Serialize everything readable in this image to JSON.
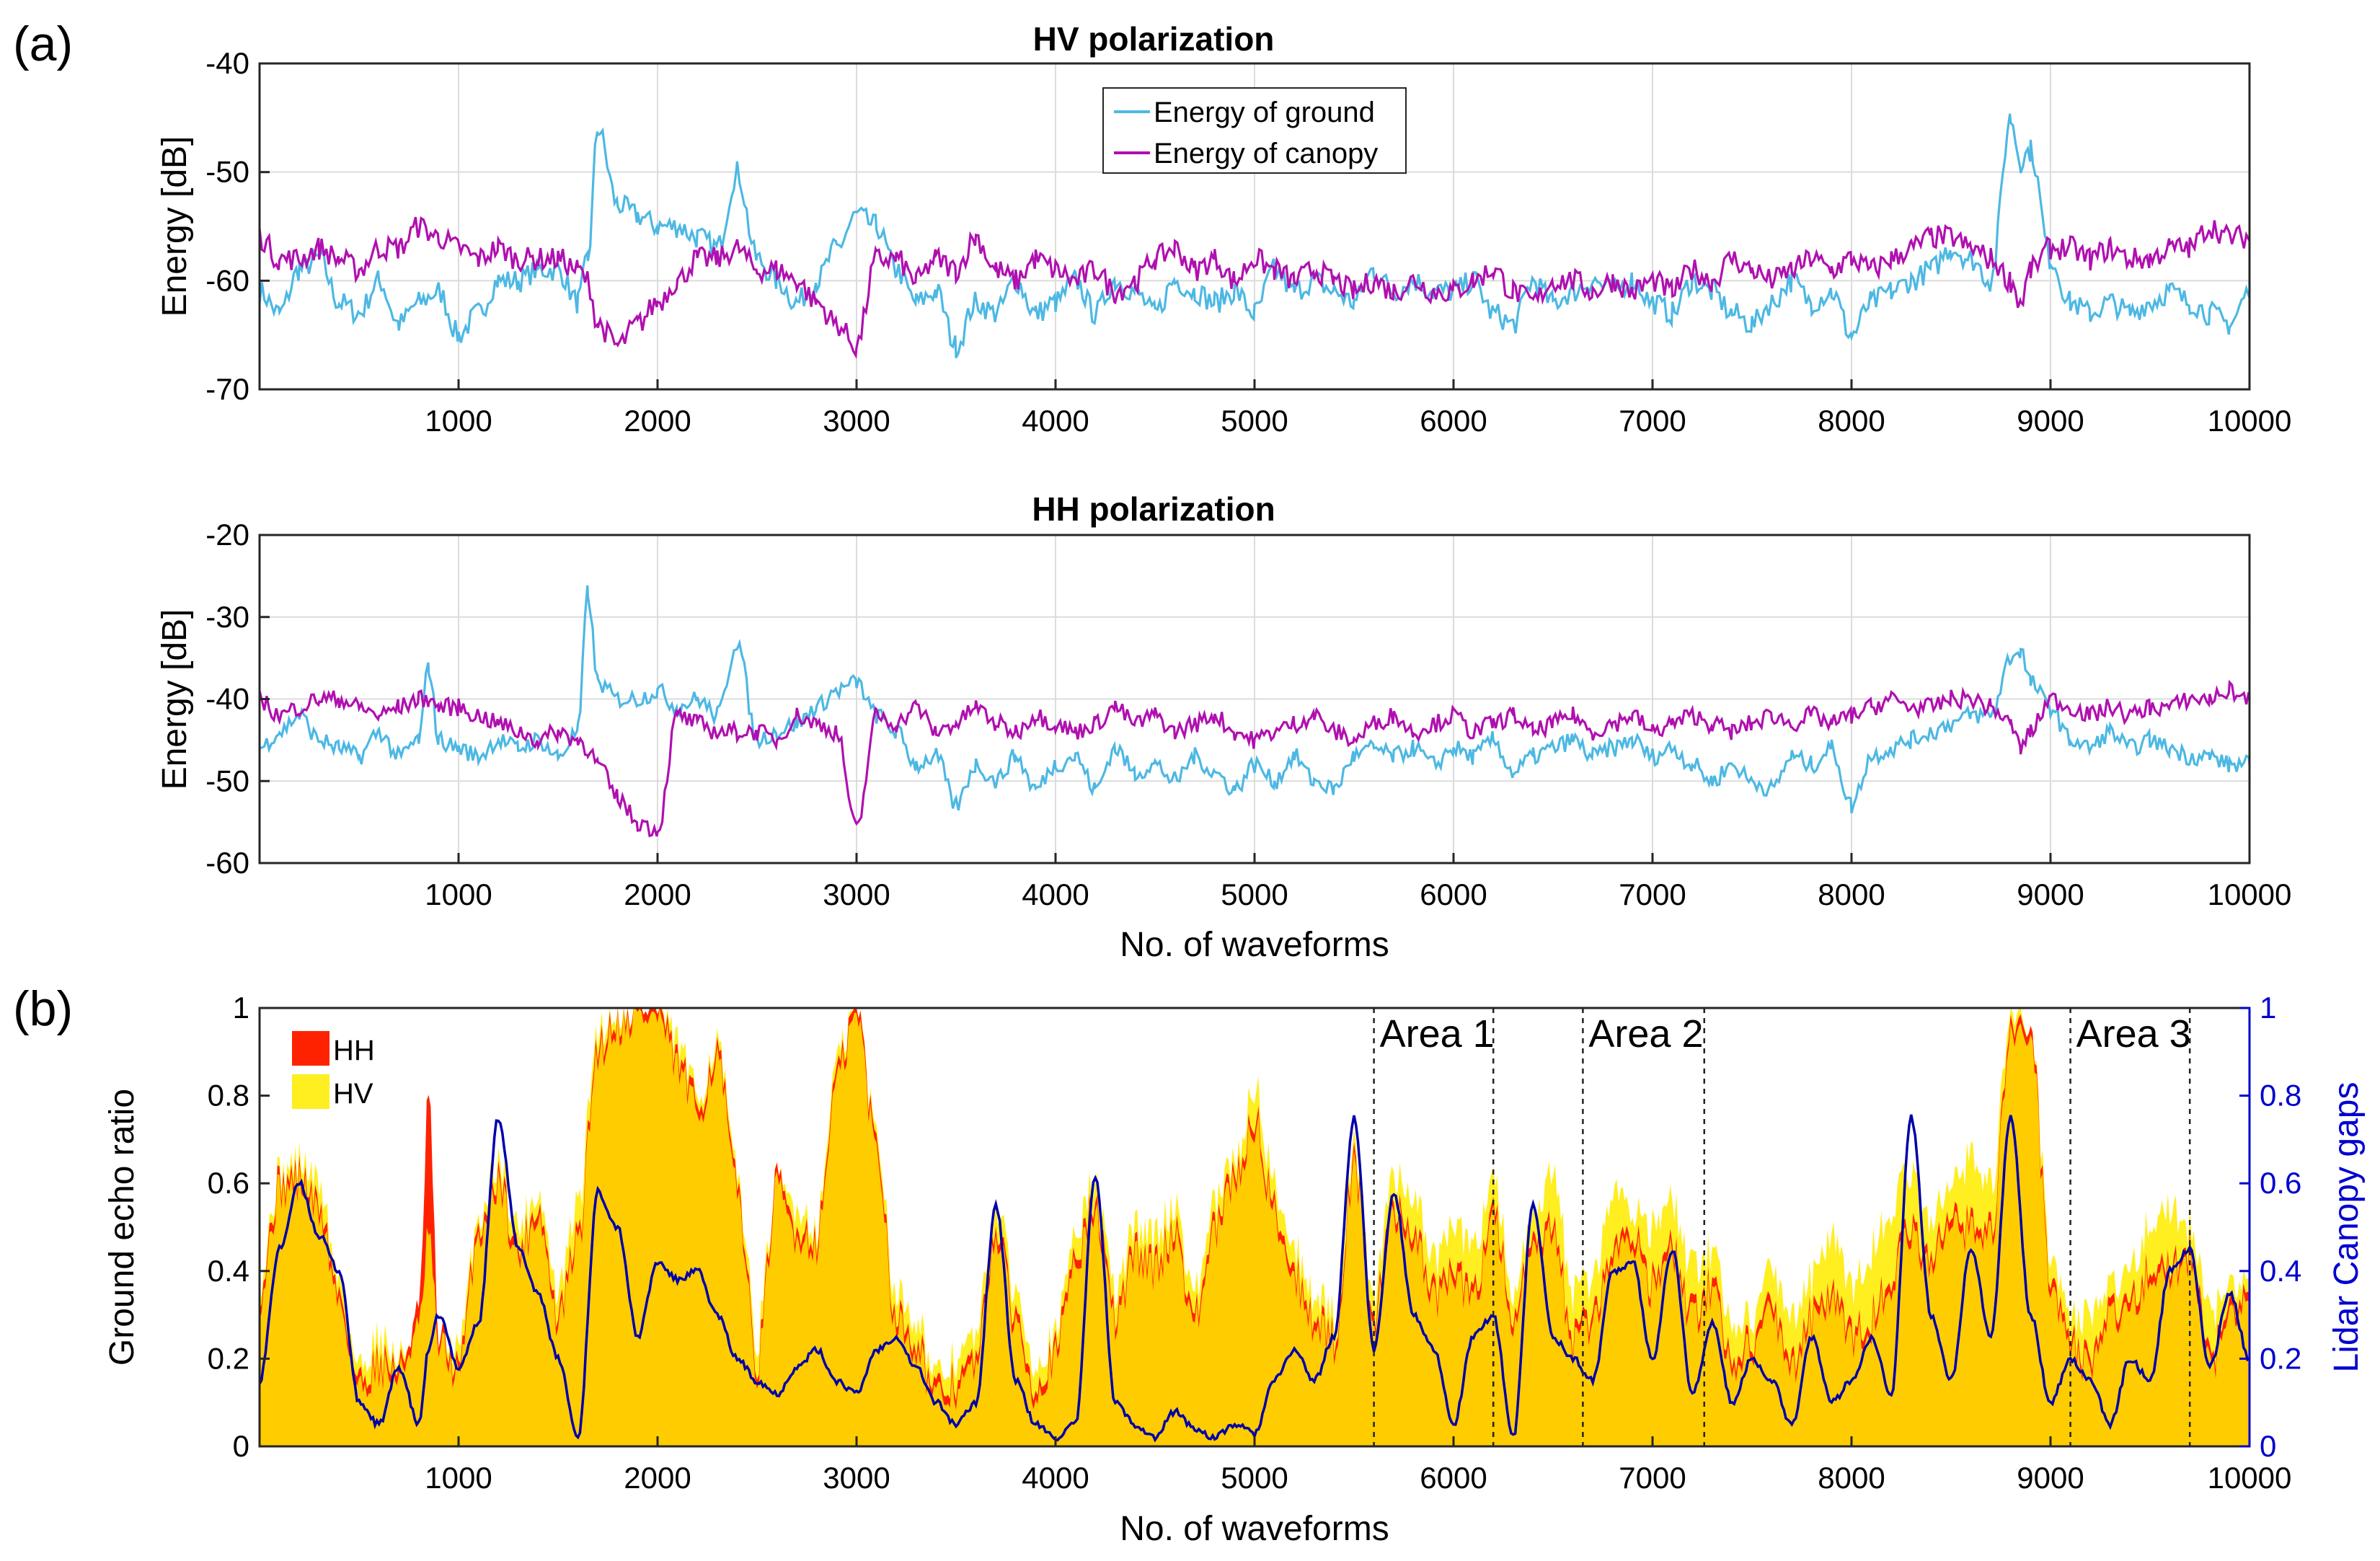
{
  "panel_labels": {
    "a": "(a)",
    "b": "(b)"
  },
  "colors": {
    "ground": "#4db8e3",
    "canopy": "#b010b0",
    "hh_fill": "#ff2200",
    "hv_fill": "#ffee20",
    "overlap_fill": "#ffcc00",
    "lidar": "#0000a8",
    "right_axis": "#0000d0"
  },
  "chart_data": [
    {
      "type": "line",
      "title": "HV polarization",
      "xlabel": "",
      "ylabel": "Energy [dB]",
      "xlim": [
        0,
        10000
      ],
      "ylim": [
        -70,
        -40
      ],
      "xticks": [
        1000,
        2000,
        3000,
        4000,
        5000,
        6000,
        7000,
        8000,
        9000,
        10000
      ],
      "yticks": [
        -70,
        -60,
        -50,
        -40
      ],
      "grid": true,
      "legend": "top-center",
      "x": [
        0,
        100,
        200,
        300,
        400,
        500,
        600,
        700,
        800,
        900,
        1000,
        1100,
        1200,
        1300,
        1400,
        1500,
        1600,
        1650,
        1700,
        1800,
        1900,
        2000,
        2100,
        2200,
        2300,
        2400,
        2500,
        2600,
        2700,
        2800,
        2900,
        3000,
        3100,
        3200,
        3300,
        3400,
        3500,
        3600,
        3700,
        3800,
        3900,
        4000,
        4100,
        4200,
        4300,
        4400,
        4500,
        4600,
        4700,
        4800,
        4900,
        5000,
        5100,
        5200,
        5300,
        5400,
        5500,
        5600,
        5700,
        5800,
        5900,
        6000,
        6100,
        6200,
        6300,
        6400,
        6500,
        6600,
        6700,
        6800,
        6900,
        7000,
        7100,
        7200,
        7300,
        7400,
        7500,
        7600,
        7700,
        7800,
        7900,
        8000,
        8100,
        8200,
        8300,
        8400,
        8500,
        8600,
        8700,
        8800,
        8850,
        8900,
        9000,
        9100,
        9200,
        9300,
        9400,
        9500,
        9600,
        9700,
        9800,
        9900,
        10000
      ],
      "series": [
        {
          "name": "Energy of ground",
          "values": [
            -61,
            -63,
            -59,
            -58,
            -62,
            -63,
            -60,
            -64,
            -62,
            -61,
            -65,
            -63,
            -60,
            -60,
            -59,
            -59,
            -62,
            -58,
            -46,
            -53,
            -54,
            -55,
            -55,
            -56,
            -57,
            -50,
            -58,
            -60,
            -62,
            -60,
            -57,
            -54,
            -55,
            -59,
            -62,
            -61,
            -66,
            -62,
            -63,
            -60,
            -63,
            -62,
            -60,
            -63,
            -60,
            -61,
            -63,
            -60,
            -61,
            -62,
            -61,
            -63,
            -59,
            -61,
            -60,
            -61,
            -62,
            -59,
            -61,
            -60,
            -61,
            -61,
            -60,
            -63,
            -64,
            -60,
            -62,
            -61,
            -60,
            -61,
            -60,
            -62,
            -63,
            -60,
            -61,
            -63,
            -64,
            -62,
            -60,
            -62,
            -61,
            -65,
            -62,
            -61,
            -60,
            -59,
            -57,
            -58,
            -60,
            -45,
            -49,
            -48,
            -58,
            -62,
            -63,
            -62,
            -63,
            -62,
            -61,
            -62,
            -63,
            -64,
            -61
          ]
        },
        {
          "name": "Energy of canopy",
          "values": [
            -56,
            -58,
            -58,
            -57,
            -58,
            -59,
            -57,
            -57,
            -55,
            -56,
            -57,
            -58,
            -57,
            -58,
            -58,
            -58,
            -59,
            -60,
            -64,
            -66,
            -64,
            -62,
            -60,
            -58,
            -58,
            -57,
            -59,
            -59,
            -60,
            -62,
            -64,
            -66,
            -58,
            -58,
            -60,
            -58,
            -59,
            -56,
            -59,
            -60,
            -58,
            -59,
            -60,
            -59,
            -61,
            -60,
            -58,
            -57,
            -59,
            -58,
            -60,
            -58,
            -59,
            -60,
            -59,
            -60,
            -61,
            -60,
            -61,
            -60,
            -61,
            -61,
            -60,
            -59,
            -61,
            -62,
            -60,
            -60,
            -61,
            -60,
            -61,
            -60,
            -61,
            -59,
            -60,
            -58,
            -59,
            -60,
            -59,
            -58,
            -59,
            -58,
            -59,
            -58,
            -57,
            -56,
            -56,
            -57,
            -58,
            -60,
            -62,
            -59,
            -57,
            -57,
            -58,
            -57,
            -58,
            -58,
            -57,
            -57,
            -55,
            -56,
            -56
          ]
        }
      ]
    },
    {
      "type": "line",
      "title": "HH polarization",
      "xlabel": "No. of waveforms",
      "ylabel": "Energy [dB]",
      "xlim": [
        0,
        10000
      ],
      "ylim": [
        -60,
        -20
      ],
      "xticks": [
        1000,
        2000,
        3000,
        4000,
        5000,
        6000,
        7000,
        8000,
        9000,
        10000
      ],
      "yticks": [
        -60,
        -50,
        -40,
        -30,
        -20
      ],
      "grid": true,
      "x": [
        0,
        100,
        200,
        300,
        400,
        500,
        600,
        700,
        800,
        850,
        900,
        1000,
        1100,
        1200,
        1300,
        1400,
        1500,
        1600,
        1650,
        1700,
        1800,
        1900,
        2000,
        2100,
        2200,
        2300,
        2400,
        2500,
        2600,
        2700,
        2800,
        2900,
        3000,
        3100,
        3200,
        3300,
        3400,
        3500,
        3600,
        3700,
        3800,
        3900,
        4000,
        4100,
        4200,
        4300,
        4400,
        4500,
        4600,
        4700,
        4800,
        4900,
        5000,
        5100,
        5200,
        5300,
        5400,
        5500,
        5600,
        5700,
        5800,
        5900,
        6000,
        6100,
        6200,
        6300,
        6400,
        6500,
        6600,
        6700,
        6800,
        6900,
        7000,
        7100,
        7200,
        7300,
        7400,
        7500,
        7600,
        7700,
        7800,
        7900,
        8000,
        8100,
        8200,
        8300,
        8400,
        8500,
        8600,
        8700,
        8800,
        8850,
        8900,
        9000,
        9100,
        9200,
        9300,
        9400,
        9500,
        9600,
        9700,
        9800,
        9900,
        10000
      ],
      "series": [
        {
          "name": "Energy of ground",
          "values": [
            -46,
            -44,
            -42,
            -45,
            -46,
            -47,
            -44,
            -47,
            -45,
            -36,
            -45,
            -46,
            -47,
            -45,
            -46,
            -45,
            -47,
            -44,
            -27,
            -38,
            -40,
            -40,
            -39,
            -41,
            -40,
            -42,
            -33,
            -45,
            -44,
            -43,
            -41,
            -39,
            -38,
            -42,
            -44,
            -48,
            -47,
            -53,
            -48,
            -50,
            -47,
            -51,
            -48,
            -47,
            -51,
            -46,
            -49,
            -48,
            -50,
            -47,
            -49,
            -51,
            -48,
            -50,
            -47,
            -50,
            -51,
            -47,
            -46,
            -47,
            -46,
            -48,
            -46,
            -47,
            -45,
            -49,
            -47,
            -46,
            -45,
            -47,
            -46,
            -45,
            -47,
            -46,
            -48,
            -50,
            -48,
            -50,
            -51,
            -47,
            -48,
            -46,
            -53,
            -47,
            -46,
            -45,
            -44,
            -43,
            -42,
            -42,
            -35,
            -34,
            -38,
            -41,
            -45,
            -46,
            -44,
            -46,
            -45,
            -46,
            -47,
            -47,
            -48,
            -48
          ]
        },
        {
          "name": "Energy of canopy",
          "values": [
            -40,
            -42,
            -41,
            -40,
            -40,
            -41,
            -42,
            -41,
            -40,
            -40,
            -41,
            -41,
            -42,
            -43,
            -44,
            -45,
            -44,
            -45,
            -46,
            -48,
            -52,
            -55,
            -56,
            -42,
            -43,
            -44,
            -44,
            -44,
            -45,
            -42,
            -43,
            -44,
            -56,
            -42,
            -43,
            -41,
            -44,
            -43,
            -41,
            -43,
            -44,
            -42,
            -43,
            -44,
            -43,
            -41,
            -43,
            -42,
            -44,
            -43,
            -42,
            -44,
            -45,
            -44,
            -43,
            -42,
            -44,
            -45,
            -43,
            -42,
            -44,
            -43,
            -42,
            -44,
            -43,
            -42,
            -44,
            -43,
            -42,
            -44,
            -43,
            -42,
            -44,
            -43,
            -42,
            -43,
            -44,
            -43,
            -42,
            -43,
            -42,
            -43,
            -42,
            -41,
            -40,
            -41,
            -41,
            -40,
            -40,
            -41,
            -43,
            -46,
            -44,
            -40,
            -41,
            -42,
            -41,
            -42,
            -41,
            -41,
            -40,
            -40,
            -39,
            -40
          ]
        }
      ]
    },
    {
      "type": "area",
      "title": "",
      "xlabel": "No. of waveforms",
      "ylabel": "Ground echo ratio",
      "ylabel_right": "Lidar Canopy gaps",
      "xlim": [
        0,
        10000
      ],
      "ylim": [
        0,
        1
      ],
      "ylim_right": [
        0,
        1
      ],
      "xticks": [
        1000,
        2000,
        3000,
        4000,
        5000,
        6000,
        7000,
        8000,
        9000,
        10000
      ],
      "yticks": [
        0,
        0.2,
        0.4,
        0.6,
        0.8,
        1
      ],
      "grid": false,
      "legend": "top-left",
      "legend_items": [
        "HH",
        "HV"
      ],
      "x": [
        0,
        100,
        200,
        300,
        400,
        500,
        600,
        700,
        800,
        850,
        900,
        1000,
        1100,
        1200,
        1300,
        1400,
        1500,
        1600,
        1700,
        1800,
        1900,
        2000,
        2100,
        2200,
        2300,
        2400,
        2500,
        2600,
        2700,
        2800,
        2900,
        3000,
        3100,
        3200,
        3300,
        3400,
        3500,
        3600,
        3700,
        3800,
        3900,
        4000,
        4100,
        4200,
        4300,
        4400,
        4500,
        4600,
        4700,
        4800,
        4900,
        5000,
        5100,
        5200,
        5300,
        5400,
        5500,
        5600,
        5700,
        5800,
        5900,
        6000,
        6100,
        6200,
        6300,
        6400,
        6500,
        6600,
        6700,
        6800,
        6900,
        7000,
        7100,
        7200,
        7300,
        7400,
        7500,
        7600,
        7700,
        7800,
        7900,
        8000,
        8100,
        8200,
        8300,
        8400,
        8500,
        8600,
        8700,
        8800,
        8900,
        9000,
        9100,
        9200,
        9300,
        9400,
        9500,
        9600,
        9700,
        9800,
        9900,
        10000
      ],
      "series": [
        {
          "name": "HH",
          "type": "area",
          "values": [
            0.36,
            0.6,
            0.62,
            0.55,
            0.35,
            0.15,
            0.2,
            0.18,
            0.3,
            0.8,
            0.25,
            0.18,
            0.5,
            0.62,
            0.45,
            0.55,
            0.3,
            0.48,
            0.92,
            0.98,
            1.0,
            1.0,
            0.88,
            0.78,
            0.9,
            0.6,
            0.2,
            0.6,
            0.5,
            0.48,
            0.85,
            1.0,
            0.7,
            0.3,
            0.25,
            0.12,
            0.15,
            0.2,
            0.5,
            0.3,
            0.15,
            0.22,
            0.45,
            0.55,
            0.3,
            0.45,
            0.42,
            0.5,
            0.3,
            0.5,
            0.62,
            0.75,
            0.55,
            0.4,
            0.3,
            0.25,
            0.65,
            0.3,
            0.55,
            0.5,
            0.35,
            0.4,
            0.35,
            0.55,
            0.3,
            0.45,
            0.5,
            0.25,
            0.3,
            0.45,
            0.5,
            0.38,
            0.45,
            0.3,
            0.38,
            0.2,
            0.25,
            0.32,
            0.2,
            0.3,
            0.35,
            0.25,
            0.3,
            0.4,
            0.5,
            0.42,
            0.55,
            0.5,
            0.5,
            0.95,
            0.95,
            0.4,
            0.25,
            0.2,
            0.3,
            0.35,
            0.4,
            0.42,
            0.45,
            0.2,
            0.3,
            0.35
          ]
        },
        {
          "name": "HV",
          "type": "area",
          "values": [
            0.38,
            0.62,
            0.65,
            0.6,
            0.38,
            0.18,
            0.25,
            0.2,
            0.28,
            0.5,
            0.25,
            0.22,
            0.52,
            0.65,
            0.5,
            0.58,
            0.35,
            0.55,
            0.95,
            1.0,
            1.0,
            1.0,
            0.92,
            0.8,
            0.92,
            0.62,
            0.25,
            0.6,
            0.55,
            0.5,
            0.88,
            1.0,
            0.72,
            0.35,
            0.3,
            0.15,
            0.2,
            0.25,
            0.55,
            0.35,
            0.2,
            0.25,
            0.5,
            0.6,
            0.35,
            0.5,
            0.48,
            0.55,
            0.35,
            0.55,
            0.65,
            0.82,
            0.6,
            0.45,
            0.35,
            0.3,
            0.68,
            0.35,
            0.62,
            0.58,
            0.42,
            0.5,
            0.45,
            0.62,
            0.35,
            0.5,
            0.62,
            0.35,
            0.38,
            0.58,
            0.55,
            0.5,
            0.55,
            0.4,
            0.45,
            0.28,
            0.3,
            0.4,
            0.3,
            0.38,
            0.48,
            0.35,
            0.45,
            0.55,
            0.62,
            0.5,
            0.62,
            0.65,
            0.6,
            0.98,
            0.95,
            0.45,
            0.3,
            0.3,
            0.35,
            0.42,
            0.5,
            0.55,
            0.5,
            0.3,
            0.35,
            0.38
          ]
        },
        {
          "name": "Lidar Canopy gaps",
          "type": "line",
          "axis": "right",
          "values": [
            0.15,
            0.45,
            0.6,
            0.48,
            0.4,
            0.1,
            0.05,
            0.18,
            0.05,
            0.22,
            0.3,
            0.18,
            0.28,
            0.75,
            0.45,
            0.35,
            0.2,
            0.02,
            0.58,
            0.5,
            0.25,
            0.42,
            0.38,
            0.4,
            0.3,
            0.2,
            0.15,
            0.12,
            0.18,
            0.22,
            0.15,
            0.12,
            0.22,
            0.25,
            0.18,
            0.1,
            0.05,
            0.1,
            0.55,
            0.15,
            0.05,
            0.02,
            0.05,
            0.62,
            0.1,
            0.05,
            0.02,
            0.08,
            0.04,
            0.02,
            0.05,
            0.03,
            0.15,
            0.22,
            0.15,
            0.25,
            0.75,
            0.22,
            0.58,
            0.3,
            0.22,
            0.05,
            0.25,
            0.3,
            0.02,
            0.55,
            0.25,
            0.2,
            0.15,
            0.4,
            0.42,
            0.2,
            0.45,
            0.12,
            0.28,
            0.1,
            0.2,
            0.15,
            0.05,
            0.25,
            0.1,
            0.15,
            0.25,
            0.12,
            0.75,
            0.3,
            0.15,
            0.45,
            0.25,
            0.75,
            0.3,
            0.1,
            0.2,
            0.15,
            0.05,
            0.2,
            0.15,
            0.4,
            0.45,
            0.18,
            0.35,
            0.2
          ]
        }
      ],
      "annotations": [
        {
          "label": "Area 1",
          "x_start": 5600,
          "x_end": 6200
        },
        {
          "label": "Area 2",
          "x_start": 6650,
          "x_end": 7260
        },
        {
          "label": "Area 3",
          "x_start": 9100,
          "x_end": 9700
        }
      ]
    }
  ]
}
